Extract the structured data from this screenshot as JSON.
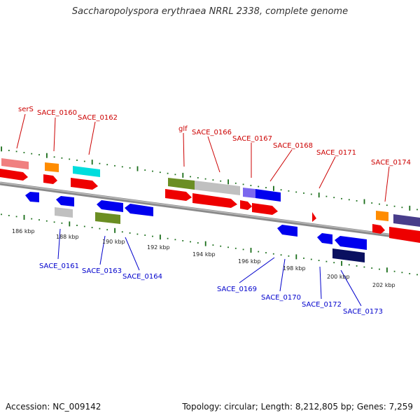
{
  "title": "Saccharopolyspora erythraea NRRL 2338, complete genome",
  "footer": {
    "accession": "Accession: NC_009142",
    "topology": "Topology: circular; Length: 8,212,805 bp; Genes: 7,259"
  },
  "colors": {
    "forward_label": "#cc0000",
    "reverse_label": "#0000cc",
    "backbone": "#8a8a8a",
    "tick_mark": "#1a6e1a"
  },
  "scale_labels": [
    "186 kbp",
    "188 kbp",
    "190 kbp",
    "192 kbp",
    "194 kbp",
    "196 kbp",
    "198 kbp",
    "200 kbp",
    "202 kbp"
  ],
  "forward_labels": [
    "serS",
    "SACE_0160",
    "SACE_0162",
    "glf",
    "SACE_0166",
    "SACE_0167",
    "SACE_0168",
    "SACE_0171",
    "SACE_0174"
  ],
  "reverse_labels": [
    "SACE_0161",
    "SACE_0163",
    "SACE_0164",
    "SACE_0169",
    "SACE_0170",
    "SACE_0172",
    "SACE_0173"
  ]
}
